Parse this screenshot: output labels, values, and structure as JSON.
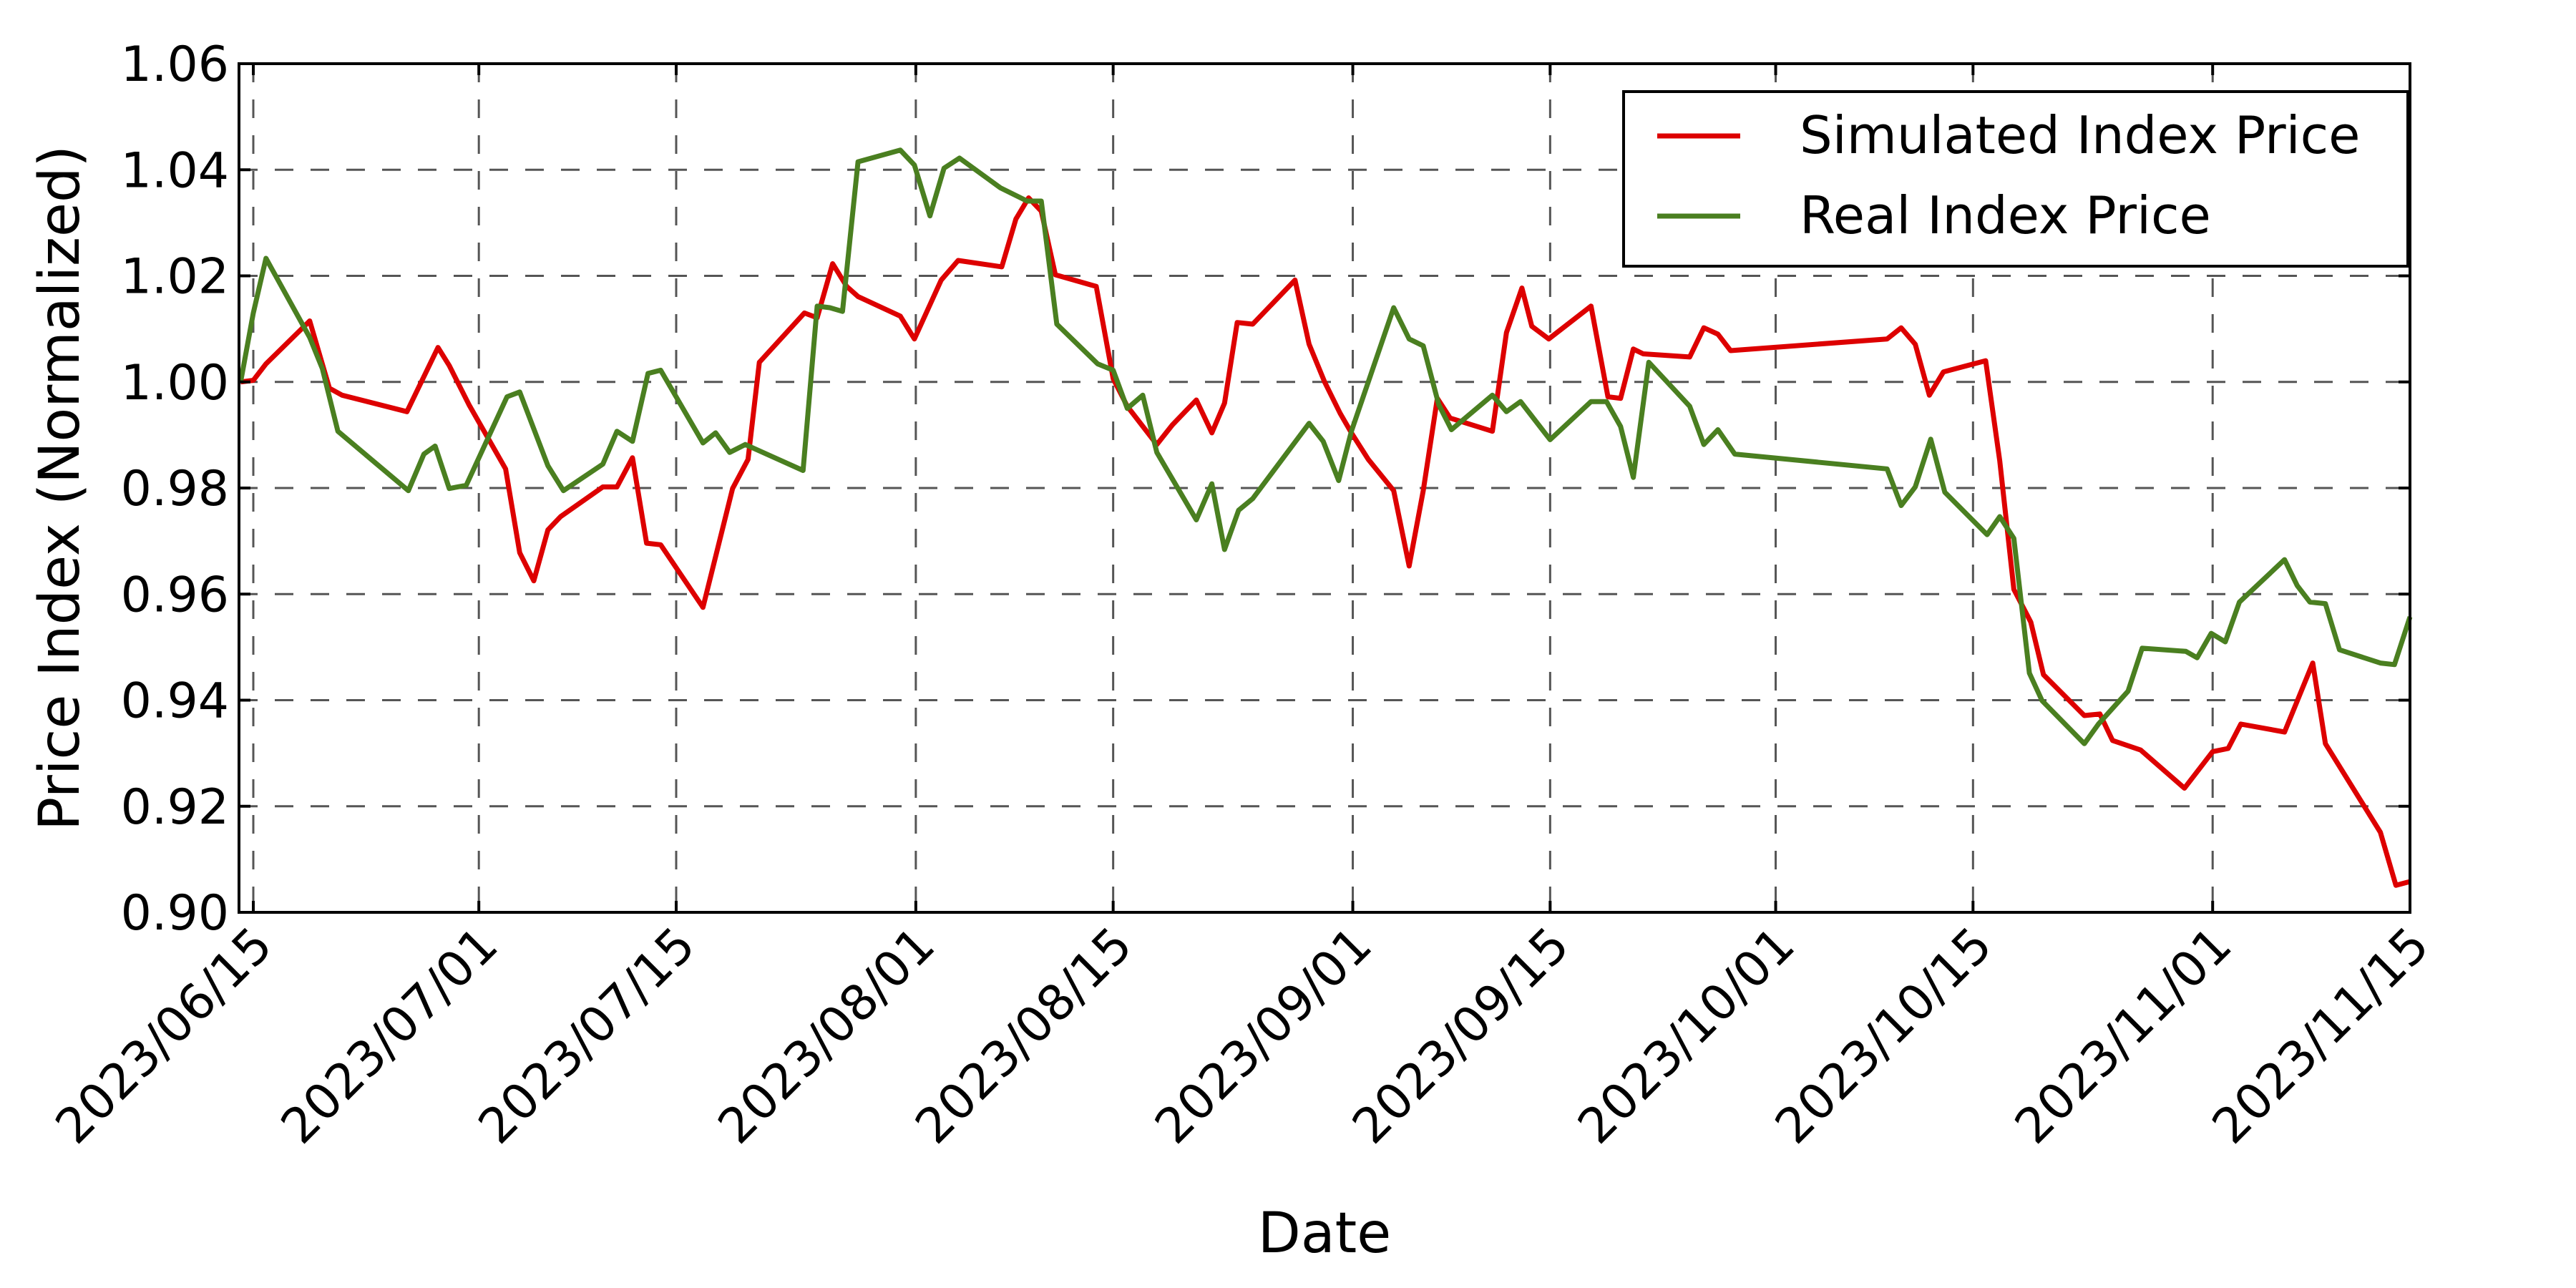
{
  "chart_data": {
    "type": "line",
    "title": "",
    "xlabel": "Date",
    "ylabel": "Price Index (Normalized)",
    "ylim": [
      0.9,
      1.06
    ],
    "yticks": [
      "0.90",
      "0.92",
      "0.94",
      "0.96",
      "0.98",
      "1.00",
      "1.02",
      "1.04",
      "1.06"
    ],
    "xlim_days_from_2023_06_15": [
      -0.9,
      153
    ],
    "xticks": [
      {
        "label": "2023/06/15",
        "day": 0
      },
      {
        "label": "2023/07/01",
        "day": 16
      },
      {
        "label": "2023/07/15",
        "day": 30
      },
      {
        "label": "2023/08/01",
        "day": 47
      },
      {
        "label": "2023/08/15",
        "day": 61
      },
      {
        "label": "2023/09/01",
        "day": 78
      },
      {
        "label": "2023/09/15",
        "day": 92
      },
      {
        "label": "2023/10/01",
        "day": 108
      },
      {
        "label": "2023/10/15",
        "day": 122
      },
      {
        "label": "2023/11/01",
        "day": 139
      },
      {
        "label": "2023/11/15",
        "day": 153
      }
    ],
    "grid": true,
    "legend_position": "upper right",
    "series": [
      {
        "name": "Simulated Index Price",
        "color": "#dd0000",
        "points": [
          [
            -0.9,
            1.0
          ],
          [
            0.0,
            1.0003
          ],
          [
            0.9,
            1.0034
          ],
          [
            4.0,
            1.0115
          ],
          [
            5.4,
            0.9988
          ],
          [
            6.3,
            0.9975
          ],
          [
            10.9,
            0.9944
          ],
          [
            13.1,
            1.0065
          ],
          [
            13.9,
            1.0031
          ],
          [
            15.3,
            0.9957
          ],
          [
            17.9,
            0.9836
          ],
          [
            18.9,
            0.9678
          ],
          [
            19.9,
            0.9625
          ],
          [
            20.9,
            0.9721
          ],
          [
            21.8,
            0.9746
          ],
          [
            24.8,
            0.9802
          ],
          [
            25.8,
            0.9802
          ],
          [
            26.9,
            0.9857
          ],
          [
            27.9,
            0.9696
          ],
          [
            28.9,
            0.9693
          ],
          [
            31.9,
            0.9575
          ],
          [
            34.0,
            0.9799
          ],
          [
            35.1,
            0.9854
          ],
          [
            35.9,
            1.0037
          ],
          [
            39.1,
            1.013
          ],
          [
            40.0,
            1.0121
          ],
          [
            41.1,
            1.0223
          ],
          [
            42.1,
            1.018
          ],
          [
            42.9,
            1.0161
          ],
          [
            45.9,
            1.0124
          ],
          [
            46.9,
            1.0081
          ],
          [
            48.8,
            1.0192
          ],
          [
            50.0,
            1.0229
          ],
          [
            53.1,
            1.0217
          ],
          [
            54.1,
            1.0307
          ],
          [
            55.0,
            1.0347
          ],
          [
            55.9,
            1.0322
          ],
          [
            56.9,
            1.0202
          ],
          [
            59.8,
            1.018
          ],
          [
            61.0,
            1.0006
          ],
          [
            62.0,
            0.9954
          ],
          [
            64.1,
            0.9882
          ],
          [
            65.2,
            0.9919
          ],
          [
            66.9,
            0.9966
          ],
          [
            68.0,
            0.9904
          ],
          [
            68.9,
            0.996
          ],
          [
            69.8,
            1.0112
          ],
          [
            70.9,
            1.0109
          ],
          [
            73.9,
            1.0192
          ],
          [
            74.9,
            1.0071
          ],
          [
            76.0,
            1.0
          ],
          [
            77.1,
            0.9941
          ],
          [
            77.9,
            0.9904
          ],
          [
            79.1,
            0.9854
          ],
          [
            80.9,
            0.9795
          ],
          [
            82.0,
            0.9653
          ],
          [
            83.0,
            0.9795
          ],
          [
            84.0,
            0.9969
          ],
          [
            84.9,
            0.9932
          ],
          [
            87.9,
            0.9907
          ],
          [
            88.9,
            1.0093
          ],
          [
            90.0,
            1.0177
          ],
          [
            90.7,
            1.0105
          ],
          [
            91.9,
            1.0081
          ],
          [
            94.9,
            1.0143
          ],
          [
            96.1,
            0.9972
          ],
          [
            97.0,
            0.9969
          ],
          [
            97.9,
            1.0062
          ],
          [
            98.6,
            1.0053
          ],
          [
            101.9,
            1.0047
          ],
          [
            102.9,
            1.0102
          ],
          [
            103.9,
            1.009
          ],
          [
            104.8,
            1.0059
          ],
          [
            115.9,
            1.0081
          ],
          [
            116.9,
            1.0102
          ],
          [
            117.9,
            1.0071
          ],
          [
            118.9,
            0.9975
          ],
          [
            119.9,
            1.0019
          ],
          [
            122.9,
            1.004
          ],
          [
            123.9,
            0.9851
          ],
          [
            124.9,
            0.9609
          ],
          [
            126.1,
            0.9547
          ],
          [
            127.0,
            0.9448
          ],
          [
            129.9,
            0.9371
          ],
          [
            131.0,
            0.9374
          ],
          [
            131.9,
            0.9324
          ],
          [
            133.9,
            0.9306
          ],
          [
            137.0,
            0.9234
          ],
          [
            139.0,
            0.9303
          ],
          [
            140.1,
            0.9309
          ],
          [
            141.0,
            0.9355
          ],
          [
            144.1,
            0.934
          ],
          [
            146.1,
            0.947
          ],
          [
            147.0,
            0.9318
          ],
          [
            150.9,
            0.9151
          ],
          [
            152.0,
            0.9051
          ],
          [
            153.0,
            0.9058
          ]
        ]
      },
      {
        "name": "Real Index Price",
        "color": "#4a7f20",
        "points": [
          [
            -0.9,
            1.0
          ],
          [
            0.0,
            1.013
          ],
          [
            0.9,
            1.0233
          ],
          [
            4.0,
            1.0084
          ],
          [
            4.9,
            1.0025
          ],
          [
            6.0,
            0.9907
          ],
          [
            11.0,
            0.9795
          ],
          [
            12.1,
            0.9864
          ],
          [
            12.9,
            0.9879
          ],
          [
            13.9,
            0.9799
          ],
          [
            15.1,
            0.9805
          ],
          [
            18.0,
            0.9972
          ],
          [
            18.9,
            0.9981
          ],
          [
            20.9,
            0.9842
          ],
          [
            22.0,
            0.9795
          ],
          [
            24.8,
            0.9845
          ],
          [
            25.8,
            0.9907
          ],
          [
            26.9,
            0.9888
          ],
          [
            28.0,
            1.0016
          ],
          [
            28.9,
            1.0022
          ],
          [
            31.9,
            0.9885
          ],
          [
            32.8,
            0.9904
          ],
          [
            33.8,
            0.9867
          ],
          [
            34.9,
            0.9882
          ],
          [
            39.0,
            0.9833
          ],
          [
            40.0,
            1.0143
          ],
          [
            40.9,
            1.014
          ],
          [
            41.8,
            1.0133
          ],
          [
            42.9,
            1.0415
          ],
          [
            45.9,
            1.0437
          ],
          [
            46.9,
            1.0409
          ],
          [
            48.0,
            1.0313
          ],
          [
            49.0,
            1.0403
          ],
          [
            50.1,
            1.0422
          ],
          [
            53.0,
            1.0366
          ],
          [
            54.9,
            1.0341
          ],
          [
            55.9,
            1.0341
          ],
          [
            57.0,
            1.0109
          ],
          [
            59.9,
            1.0034
          ],
          [
            61.0,
            1.0022
          ],
          [
            62.0,
            0.995
          ],
          [
            63.1,
            0.9975
          ],
          [
            64.1,
            0.9867
          ],
          [
            66.9,
            0.974
          ],
          [
            68.0,
            0.9808
          ],
          [
            68.9,
            0.9684
          ],
          [
            69.9,
            0.9758
          ],
          [
            70.9,
            0.978
          ],
          [
            74.9,
            0.9922
          ],
          [
            75.9,
            0.9888
          ],
          [
            77.0,
            0.9814
          ],
          [
            77.9,
            0.9907
          ],
          [
            80.9,
            1.014
          ],
          [
            82.0,
            1.0081
          ],
          [
            83.0,
            1.0068
          ],
          [
            84.1,
            0.9957
          ],
          [
            85.0,
            0.991
          ],
          [
            87.9,
            0.9975
          ],
          [
            88.9,
            0.9944
          ],
          [
            89.9,
            0.9963
          ],
          [
            92.0,
            0.9891
          ],
          [
            94.9,
            0.9963
          ],
          [
            96.0,
            0.9963
          ],
          [
            97.0,
            0.9916
          ],
          [
            97.9,
            0.982
          ],
          [
            99.0,
            1.0037
          ],
          [
            101.9,
            0.9954
          ],
          [
            102.9,
            0.9882
          ],
          [
            103.9,
            0.991
          ],
          [
            105.1,
            0.9864
          ],
          [
            115.9,
            0.9836
          ],
          [
            116.9,
            0.9767
          ],
          [
            117.9,
            0.9802
          ],
          [
            119.0,
            0.9892
          ],
          [
            120.0,
            0.9792
          ],
          [
            123.0,
            0.9712
          ],
          [
            123.9,
            0.9746
          ],
          [
            124.9,
            0.9705
          ],
          [
            126.0,
            0.9451
          ],
          [
            126.9,
            0.9399
          ],
          [
            129.9,
            0.9318
          ],
          [
            130.9,
            0.9355
          ],
          [
            133.0,
            0.9417
          ],
          [
            134.0,
            0.9498
          ],
          [
            137.1,
            0.9492
          ],
          [
            137.9,
            0.948
          ],
          [
            138.9,
            0.9526
          ],
          [
            139.9,
            0.951
          ],
          [
            140.9,
            0.9585
          ],
          [
            144.1,
            0.9665
          ],
          [
            145.0,
            0.9616
          ],
          [
            145.9,
            0.9585
          ],
          [
            147.0,
            0.9582
          ],
          [
            148.0,
            0.9495
          ],
          [
            150.9,
            0.947
          ],
          [
            151.9,
            0.9467
          ],
          [
            153.0,
            0.9557
          ]
        ]
      }
    ]
  },
  "legend": {
    "items": [
      {
        "label": "Simulated Index Price",
        "color": "#dd0000"
      },
      {
        "label": "Real Index Price",
        "color": "#4a7f20"
      }
    ]
  },
  "axes": {
    "xlabel": "Date",
    "ylabel": "Price Index (Normalized)"
  }
}
